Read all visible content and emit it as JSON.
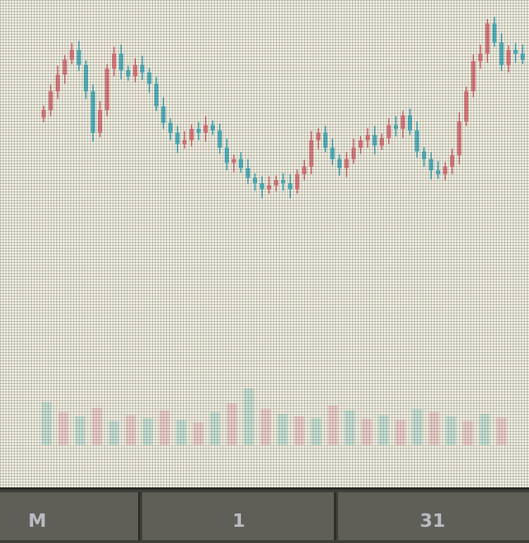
{
  "volume_label": "",
  "bottom_bar": {
    "segments": [
      {
        "label": "M"
      },
      {
        "label": "1"
      },
      {
        "label": "31"
      }
    ]
  },
  "colors": {
    "up": "#e07a80",
    "down": "#4fb6c4",
    "volume_up": "#f0c4c8",
    "volume_down": "#b8dfd6"
  },
  "chart_data": {
    "type": "candlestick",
    "title": "",
    "xlabel": "",
    "ylabel": "",
    "grid": true,
    "close_series": [
      125,
      150,
      172,
      192,
      205,
      185,
      150,
      95,
      125,
      180,
      200,
      178,
      170,
      185,
      175,
      160,
      130,
      108,
      95,
      80,
      85,
      100,
      95,
      105,
      98,
      75,
      55,
      60,
      48,
      35,
      28,
      20,
      25,
      32,
      28,
      20,
      40,
      50,
      85,
      95,
      75,
      60,
      48,
      60,
      75,
      85,
      92,
      78,
      88,
      105,
      100,
      118,
      98,
      70,
      60,
      45,
      40,
      50,
      65,
      110,
      150,
      190,
      200,
      240,
      215,
      185,
      205,
      200,
      192
    ],
    "volume_series": [
      72,
      55,
      48,
      62,
      40,
      50,
      45,
      58,
      42,
      38,
      55,
      70,
      95,
      60,
      52,
      48,
      45,
      66,
      58,
      44,
      50,
      42,
      60,
      55,
      48,
      40,
      52,
      46
    ]
  }
}
